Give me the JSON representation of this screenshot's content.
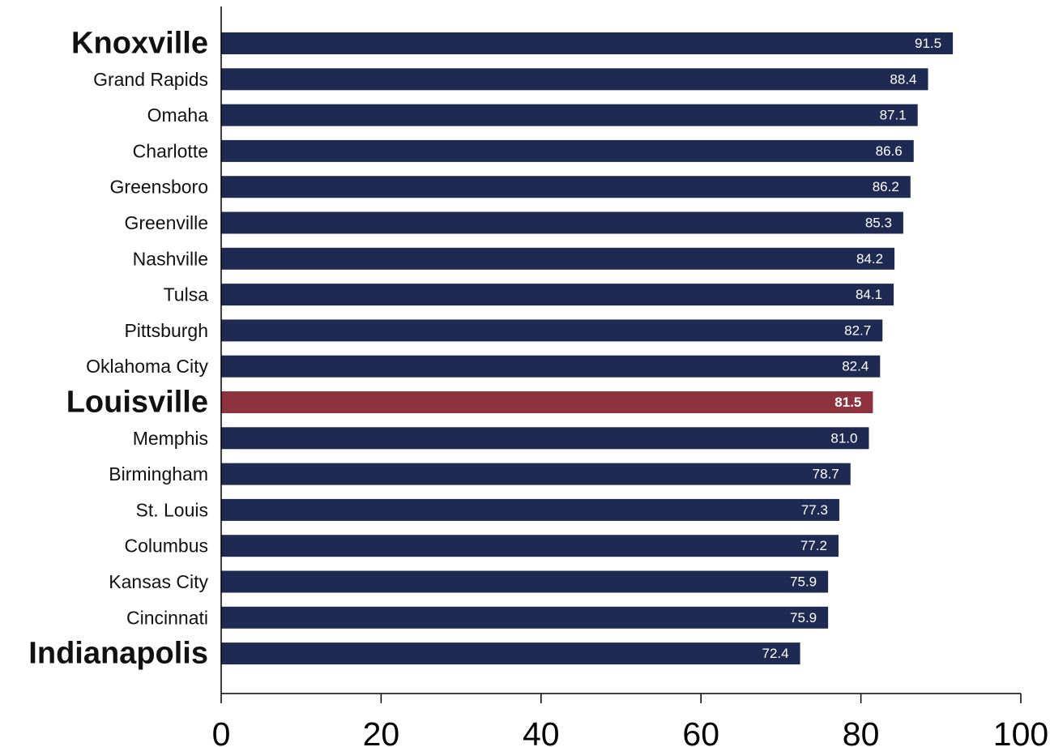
{
  "chart_data": {
    "type": "bar",
    "orientation": "horizontal",
    "title": "",
    "xlabel": "",
    "ylabel": "",
    "categories": [
      "Knoxville",
      "Grand Rapids",
      "Omaha",
      "Charlotte",
      "Greensboro",
      "Greenville",
      "Nashville",
      "Tulsa",
      "Pittsburgh",
      "Oklahoma City",
      "Louisville",
      "Memphis",
      "Birmingham",
      "St. Louis",
      "Columbus",
      "Kansas City",
      "Cincinnati",
      "Indianapolis"
    ],
    "values": [
      91.5,
      88.4,
      87.1,
      86.6,
      86.2,
      85.3,
      84.2,
      84.1,
      82.7,
      82.4,
      81.5,
      81.0,
      78.7,
      77.3,
      77.2,
      75.9,
      75.9,
      72.4
    ],
    "value_labels": [
      "91.5",
      "88.4",
      "87.1",
      "86.6",
      "86.2",
      "85.3",
      "84.2",
      "84.1",
      "82.7",
      "82.4",
      "81.5",
      "81.0",
      "78.7",
      "77.3",
      "77.2",
      "75.9",
      "75.9",
      "72.4"
    ],
    "emphasized_categories": [
      "Knoxville",
      "Louisville",
      "Indianapolis"
    ],
    "highlight_category": "Louisville",
    "xlim": [
      0,
      100
    ],
    "x_ticks": [
      0,
      20,
      40,
      60,
      80,
      100
    ],
    "x_tick_labels": [
      "0",
      "20",
      "40",
      "60",
      "80",
      "100"
    ],
    "grid": false,
    "colors": {
      "bar": "#1f2a52",
      "highlight_bar": "#8e333d",
      "value_text": "#ffffff",
      "axis": "#000000",
      "label_text": "#111111"
    }
  }
}
